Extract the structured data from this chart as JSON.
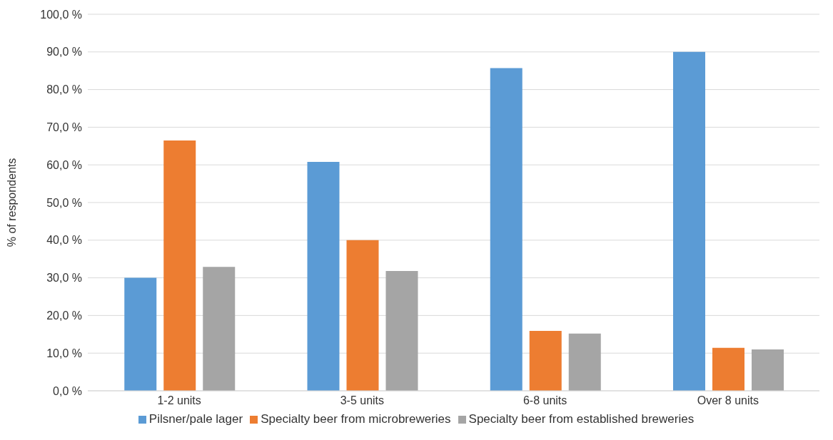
{
  "chart_data": {
    "type": "bar",
    "ylabel": "% of respondents",
    "categories": [
      "1-2 units",
      "3-5 units",
      "6-8 units",
      "Over 8 units"
    ],
    "series": [
      {
        "name": "Pilsner/pale lager",
        "color": "#5b9bd5",
        "values": [
          30.0,
          60.8,
          85.7,
          90.0
        ]
      },
      {
        "name": "Specialty beer from microbreweries",
        "color": "#ed7d31",
        "values": [
          66.5,
          40.0,
          15.9,
          11.4
        ]
      },
      {
        "name": "Specialty beer from established breweries",
        "color": "#a5a5a5",
        "values": [
          32.9,
          31.8,
          15.2,
          11.0
        ]
      }
    ],
    "ylim": [
      0,
      100
    ],
    "yticks": [
      {
        "value": 0,
        "label": "0,0 %"
      },
      {
        "value": 10,
        "label": "10,0 %"
      },
      {
        "value": 20,
        "label": "20,0 %"
      },
      {
        "value": 30,
        "label": "30,0 %"
      },
      {
        "value": 40,
        "label": "40,0 %"
      },
      {
        "value": 50,
        "label": "50,0 %"
      },
      {
        "value": 60,
        "label": "60,0 %"
      },
      {
        "value": 70,
        "label": "70,0 %"
      },
      {
        "value": 80,
        "label": "80,0 %"
      },
      {
        "value": 90,
        "label": "90,0 %"
      },
      {
        "value": 100,
        "label": "100,0 %"
      }
    ],
    "grid": "y",
    "legend": "bottom"
  }
}
